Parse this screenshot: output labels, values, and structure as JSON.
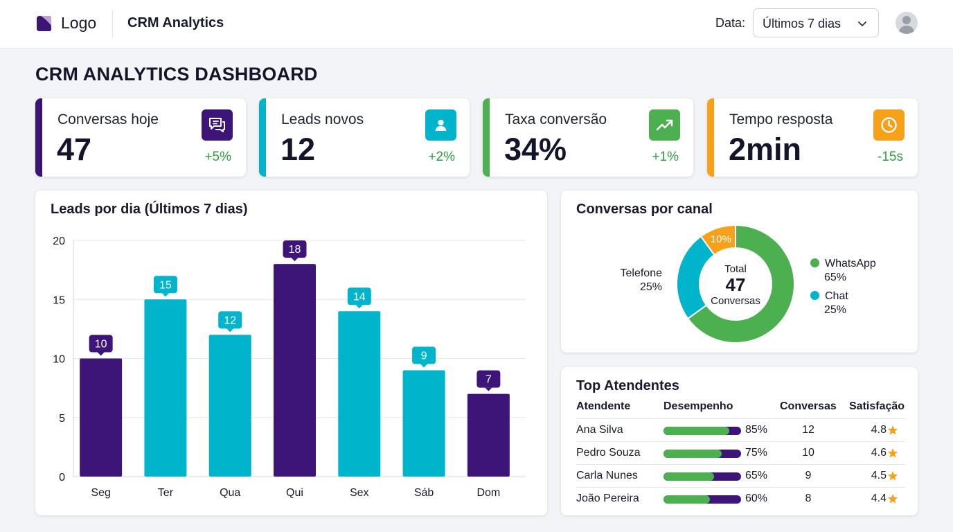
{
  "header": {
    "logo_text": "Logo",
    "app_title": "CRM Analytics",
    "date_label": "Data:",
    "date_value": "Últimos 7 dias"
  },
  "page_title": "CRM ANALYTICS DASHBOARD",
  "colors": {
    "purple": "#3d1578",
    "cyan": "#00b4cc",
    "green": "#4caf50",
    "orange": "#f7a11a",
    "delta_green": "#2e9e3e",
    "star": "#f7a11a"
  },
  "kpis": [
    {
      "label": "Conversas hoje",
      "value": "47",
      "delta": "+5%",
      "icon": "chat-icon",
      "color": "#3d1578"
    },
    {
      "label": "Leads novos",
      "value": "12",
      "delta": "+2%",
      "icon": "user-icon",
      "color": "#00b4cc"
    },
    {
      "label": "Taxa conversão",
      "value": "34%",
      "delta": "+1%",
      "icon": "trend-up-icon",
      "color": "#4caf50"
    },
    {
      "label": "Tempo resposta",
      "value": "2min",
      "delta": "-15s",
      "icon": "clock-icon",
      "color": "#f7a11a"
    }
  ],
  "bar_chart": {
    "title": "Leads por dia (Últimos 7 dias)"
  },
  "chart_data": [
    {
      "type": "bar",
      "title": "Leads por dia (Últimos 7 dias)",
      "categories": [
        "Seg",
        "Ter",
        "Qua",
        "Qui",
        "Sex",
        "Sáb",
        "Dom"
      ],
      "values": [
        10,
        15,
        12,
        18,
        14,
        9,
        7
      ],
      "bar_colors": [
        "#3d1578",
        "#00b4cc",
        "#00b4cc",
        "#3d1578",
        "#00b4cc",
        "#00b4cc",
        "#3d1578"
      ],
      "yticks": [
        0,
        5,
        10,
        15,
        20
      ],
      "ylim": [
        0,
        20
      ],
      "grid": true,
      "data_labels": true
    },
    {
      "type": "pie",
      "title": "Conversas por canal",
      "donut": true,
      "slices": [
        {
          "name": "WhatsApp",
          "value": 65,
          "label": "65%",
          "color": "#4caf50"
        },
        {
          "name": "Chat",
          "value": 25,
          "label": "25%",
          "color": "#00b4cc"
        },
        {
          "name": "Telefone",
          "value": 25,
          "label": "25%",
          "color": "#00b4cc"
        },
        {
          "name": "",
          "value": 10,
          "label": "10%",
          "color": "#f7a11a"
        }
      ],
      "center": {
        "top": "Total",
        "value": "47",
        "bottom": "Conversas"
      }
    }
  ],
  "donut": {
    "title": "Conversas por canal",
    "center_top": "Total",
    "center_value": "47",
    "center_bottom": "Conversas",
    "slice_label": "10%",
    "legend_left": {
      "name": "Telefone",
      "pct": "25%"
    },
    "legend_right": [
      {
        "name": "WhatsApp",
        "pct": "65%",
        "color": "#4caf50"
      },
      {
        "name": "Chat",
        "pct": "25%",
        "color": "#00b4cc"
      }
    ]
  },
  "table": {
    "title": "Top Atendentes",
    "headers": [
      "Atendente",
      "Desempenho",
      "Conversas",
      "Satisfação"
    ],
    "rows": [
      {
        "name": "Ana Silva",
        "performance": 85,
        "performance_label": "85%",
        "conversations": "12",
        "satisfaction": "4.8"
      },
      {
        "name": "Pedro Souza",
        "performance": 75,
        "performance_label": "75%",
        "conversations": "10",
        "satisfaction": "4.6"
      },
      {
        "name": "Carla Nunes",
        "performance": 65,
        "performance_label": "65%",
        "conversations": "9",
        "satisfaction": "4.5"
      },
      {
        "name": "João Pereira",
        "performance": 60,
        "performance_label": "60%",
        "conversations": "8",
        "satisfaction": "4.4"
      }
    ]
  }
}
